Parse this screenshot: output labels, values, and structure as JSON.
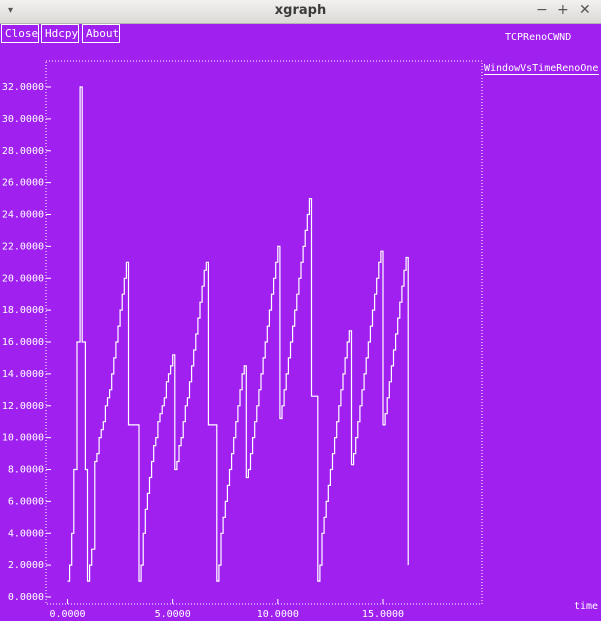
{
  "window": {
    "title": "xgraph",
    "menu_icon": "▾",
    "minimize_icon": "−",
    "maximize_icon": "+",
    "close_icon": "✕"
  },
  "toolbar": {
    "close_label": "Close",
    "hdcpy_label": "Hdcpy",
    "about_label": "About"
  },
  "graph": {
    "title": "TCPRenoCWND",
    "x_unit": "time",
    "legend": "WindowVsTimeRenoOne"
  },
  "chart_data": {
    "type": "line",
    "title": "TCPRenoCWND",
    "xlabel": "time",
    "ylabel": "",
    "xlim": [
      -1,
      20
    ],
    "ylim": [
      0,
      33
    ],
    "x_ticks": [
      0,
      5,
      10,
      15
    ],
    "x_tick_labels": [
      "0.0000",
      "5.0000",
      "10.0000",
      "15.0000"
    ],
    "y_ticks": [
      0,
      2,
      4,
      6,
      8,
      10,
      12,
      14,
      16,
      18,
      20,
      22,
      24,
      26,
      28,
      30,
      32
    ],
    "y_tick_labels": [
      "0.0000",
      "2.0000",
      "4.0000",
      "6.0000",
      "8.0000",
      "10.0000",
      "12.0000",
      "14.0000",
      "16.0000",
      "18.0000",
      "20.0000",
      "22.0000",
      "24.0000",
      "26.0000",
      "28.0000",
      "30.0000",
      "32.0000"
    ],
    "grid": false,
    "series": [
      {
        "name": "WindowVsTimeRenoOne",
        "color": "#ffffff",
        "points": [
          [
            0.0,
            1
          ],
          [
            0.1,
            1
          ],
          [
            0.1,
            2
          ],
          [
            0.2,
            2
          ],
          [
            0.2,
            4
          ],
          [
            0.3,
            4
          ],
          [
            0.3,
            8
          ],
          [
            0.45,
            8
          ],
          [
            0.45,
            16
          ],
          [
            0.6,
            16
          ],
          [
            0.6,
            32
          ],
          [
            0.7,
            32
          ],
          [
            0.7,
            16
          ],
          [
            0.85,
            16
          ],
          [
            0.85,
            8
          ],
          [
            0.95,
            8
          ],
          [
            0.95,
            1
          ],
          [
            1.05,
            1
          ],
          [
            1.05,
            2
          ],
          [
            1.15,
            2
          ],
          [
            1.15,
            3
          ],
          [
            1.3,
            3
          ],
          [
            1.3,
            8.5
          ],
          [
            1.4,
            8.5
          ],
          [
            1.4,
            9
          ],
          [
            1.5,
            9
          ],
          [
            1.5,
            10
          ],
          [
            1.6,
            10
          ],
          [
            1.6,
            10.5
          ],
          [
            1.7,
            10.5
          ],
          [
            1.7,
            11
          ],
          [
            1.8,
            11
          ],
          [
            1.8,
            12
          ],
          [
            1.9,
            12
          ],
          [
            1.9,
            12.5
          ],
          [
            2.0,
            12.5
          ],
          [
            2.0,
            13
          ],
          [
            2.1,
            13
          ],
          [
            2.1,
            14
          ],
          [
            2.2,
            14
          ],
          [
            2.2,
            15
          ],
          [
            2.3,
            15
          ],
          [
            2.3,
            16
          ],
          [
            2.4,
            16
          ],
          [
            2.4,
            17
          ],
          [
            2.5,
            17
          ],
          [
            2.5,
            18
          ],
          [
            2.6,
            18
          ],
          [
            2.6,
            19
          ],
          [
            2.7,
            19
          ],
          [
            2.7,
            20
          ],
          [
            2.8,
            20
          ],
          [
            2.8,
            21
          ],
          [
            2.9,
            21
          ],
          [
            2.9,
            10.8
          ],
          [
            3.4,
            10.8
          ],
          [
            3.4,
            1
          ],
          [
            3.5,
            1
          ],
          [
            3.5,
            2
          ],
          [
            3.6,
            2
          ],
          [
            3.6,
            4
          ],
          [
            3.7,
            4
          ],
          [
            3.7,
            5.5
          ],
          [
            3.8,
            5.5
          ],
          [
            3.8,
            6.5
          ],
          [
            3.9,
            6.5
          ],
          [
            3.9,
            7.5
          ],
          [
            4.0,
            7.5
          ],
          [
            4.0,
            8.5
          ],
          [
            4.1,
            8.5
          ],
          [
            4.1,
            9.5
          ],
          [
            4.2,
            9.5
          ],
          [
            4.2,
            10
          ],
          [
            4.3,
            10
          ],
          [
            4.3,
            11
          ],
          [
            4.4,
            11
          ],
          [
            4.4,
            11.5
          ],
          [
            4.5,
            11.5
          ],
          [
            4.5,
            12
          ],
          [
            4.6,
            12
          ],
          [
            4.6,
            12.5
          ],
          [
            4.7,
            12.5
          ],
          [
            4.7,
            13.5
          ],
          [
            4.8,
            13.5
          ],
          [
            4.8,
            14
          ],
          [
            4.9,
            14
          ],
          [
            4.9,
            14.5
          ],
          [
            5.0,
            14.5
          ],
          [
            5.0,
            15.2
          ],
          [
            5.1,
            15.2
          ],
          [
            5.1,
            8
          ],
          [
            5.2,
            8
          ],
          [
            5.2,
            8.5
          ],
          [
            5.3,
            8.5
          ],
          [
            5.3,
            9.5
          ],
          [
            5.4,
            9.5
          ],
          [
            5.4,
            10
          ],
          [
            5.5,
            10
          ],
          [
            5.5,
            11
          ],
          [
            5.6,
            11
          ],
          [
            5.6,
            12
          ],
          [
            5.7,
            12
          ],
          [
            5.7,
            12.5
          ],
          [
            5.8,
            12.5
          ],
          [
            5.8,
            13.5
          ],
          [
            5.9,
            13.5
          ],
          [
            5.9,
            14.5
          ],
          [
            6.0,
            14.5
          ],
          [
            6.0,
            15.5
          ],
          [
            6.1,
            15.5
          ],
          [
            6.1,
            16.5
          ],
          [
            6.2,
            16.5
          ],
          [
            6.2,
            17.5
          ],
          [
            6.3,
            17.5
          ],
          [
            6.3,
            18.5
          ],
          [
            6.4,
            18.5
          ],
          [
            6.4,
            19.5
          ],
          [
            6.5,
            19.5
          ],
          [
            6.5,
            20.5
          ],
          [
            6.6,
            20.5
          ],
          [
            6.6,
            21
          ],
          [
            6.7,
            21
          ],
          [
            6.7,
            10.8
          ],
          [
            7.1,
            10.8
          ],
          [
            7.1,
            1
          ],
          [
            7.2,
            1
          ],
          [
            7.2,
            2
          ],
          [
            7.3,
            2
          ],
          [
            7.3,
            4
          ],
          [
            7.4,
            4
          ],
          [
            7.4,
            5
          ],
          [
            7.5,
            5
          ],
          [
            7.5,
            6
          ],
          [
            7.6,
            6
          ],
          [
            7.6,
            7
          ],
          [
            7.7,
            7
          ],
          [
            7.7,
            8
          ],
          [
            7.8,
            8
          ],
          [
            7.8,
            9
          ],
          [
            7.9,
            9
          ],
          [
            7.9,
            10
          ],
          [
            8.0,
            10
          ],
          [
            8.0,
            11
          ],
          [
            8.1,
            11
          ],
          [
            8.1,
            12
          ],
          [
            8.2,
            12
          ],
          [
            8.2,
            13
          ],
          [
            8.3,
            13
          ],
          [
            8.3,
            14
          ],
          [
            8.4,
            14
          ],
          [
            8.4,
            14.5
          ],
          [
            8.5,
            14.5
          ],
          [
            8.5,
            7.5
          ],
          [
            8.6,
            7.5
          ],
          [
            8.6,
            8
          ],
          [
            8.7,
            8
          ],
          [
            8.7,
            9
          ],
          [
            8.8,
            9
          ],
          [
            8.8,
            10
          ],
          [
            8.9,
            10
          ],
          [
            8.9,
            11
          ],
          [
            9.0,
            11
          ],
          [
            9.0,
            12
          ],
          [
            9.1,
            12
          ],
          [
            9.1,
            13
          ],
          [
            9.2,
            13
          ],
          [
            9.2,
            14
          ],
          [
            9.3,
            14
          ],
          [
            9.3,
            15
          ],
          [
            9.4,
            15
          ],
          [
            9.4,
            16
          ],
          [
            9.5,
            16
          ],
          [
            9.5,
            17
          ],
          [
            9.6,
            17
          ],
          [
            9.6,
            18
          ],
          [
            9.7,
            18
          ],
          [
            9.7,
            19
          ],
          [
            9.8,
            19
          ],
          [
            9.8,
            20
          ],
          [
            9.9,
            20
          ],
          [
            9.9,
            21
          ],
          [
            10.0,
            21
          ],
          [
            10.0,
            22
          ],
          [
            10.1,
            22
          ],
          [
            10.1,
            11.2
          ],
          [
            10.2,
            11.2
          ],
          [
            10.2,
            12
          ],
          [
            10.3,
            12
          ],
          [
            10.3,
            13
          ],
          [
            10.4,
            13
          ],
          [
            10.4,
            14
          ],
          [
            10.5,
            14
          ],
          [
            10.5,
            15
          ],
          [
            10.6,
            15
          ],
          [
            10.6,
            16
          ],
          [
            10.7,
            16
          ],
          [
            10.7,
            17
          ],
          [
            10.8,
            17
          ],
          [
            10.8,
            18
          ],
          [
            10.9,
            18
          ],
          [
            10.9,
            19
          ],
          [
            11.0,
            19
          ],
          [
            11.0,
            20
          ],
          [
            11.1,
            20
          ],
          [
            11.1,
            21
          ],
          [
            11.2,
            21
          ],
          [
            11.2,
            22
          ],
          [
            11.3,
            22
          ],
          [
            11.3,
            23
          ],
          [
            11.4,
            23
          ],
          [
            11.4,
            24
          ],
          [
            11.5,
            24
          ],
          [
            11.5,
            25
          ],
          [
            11.6,
            25
          ],
          [
            11.6,
            12.6
          ],
          [
            11.9,
            12.6
          ],
          [
            11.9,
            1
          ],
          [
            12.0,
            1
          ],
          [
            12.0,
            2
          ],
          [
            12.1,
            2
          ],
          [
            12.1,
            4
          ],
          [
            12.2,
            4
          ],
          [
            12.2,
            5
          ],
          [
            12.3,
            5
          ],
          [
            12.3,
            6
          ],
          [
            12.4,
            6
          ],
          [
            12.4,
            7
          ],
          [
            12.5,
            7
          ],
          [
            12.5,
            8
          ],
          [
            12.6,
            8
          ],
          [
            12.6,
            9
          ],
          [
            12.7,
            9
          ],
          [
            12.7,
            10
          ],
          [
            12.8,
            10
          ],
          [
            12.8,
            11
          ],
          [
            12.9,
            11
          ],
          [
            12.9,
            12
          ],
          [
            13.0,
            12
          ],
          [
            13.0,
            13
          ],
          [
            13.1,
            13
          ],
          [
            13.1,
            14
          ],
          [
            13.2,
            14
          ],
          [
            13.2,
            15
          ],
          [
            13.3,
            15
          ],
          [
            13.3,
            16
          ],
          [
            13.4,
            16
          ],
          [
            13.4,
            16.7
          ],
          [
            13.5,
            16.7
          ],
          [
            13.5,
            8.3
          ],
          [
            13.6,
            8.3
          ],
          [
            13.6,
            9
          ],
          [
            13.7,
            9
          ],
          [
            13.7,
            10
          ],
          [
            13.8,
            10
          ],
          [
            13.8,
            11
          ],
          [
            13.9,
            11
          ],
          [
            13.9,
            12
          ],
          [
            14.0,
            12
          ],
          [
            14.0,
            13
          ],
          [
            14.1,
            13
          ],
          [
            14.1,
            14
          ],
          [
            14.2,
            14
          ],
          [
            14.2,
            15
          ],
          [
            14.3,
            15
          ],
          [
            14.3,
            16
          ],
          [
            14.4,
            16
          ],
          [
            14.4,
            17
          ],
          [
            14.5,
            17
          ],
          [
            14.5,
            18
          ],
          [
            14.6,
            18
          ],
          [
            14.6,
            19
          ],
          [
            14.7,
            19
          ],
          [
            14.7,
            20
          ],
          [
            14.8,
            20
          ],
          [
            14.8,
            21
          ],
          [
            14.9,
            21
          ],
          [
            14.9,
            21.7
          ],
          [
            15.0,
            21.7
          ],
          [
            15.0,
            10.8
          ],
          [
            15.1,
            10.8
          ],
          [
            15.1,
            11.5
          ],
          [
            15.2,
            11.5
          ],
          [
            15.2,
            12.5
          ],
          [
            15.3,
            12.5
          ],
          [
            15.3,
            13.5
          ],
          [
            15.4,
            13.5
          ],
          [
            15.4,
            14.5
          ],
          [
            15.5,
            14.5
          ],
          [
            15.5,
            15.5
          ],
          [
            15.6,
            15.5
          ],
          [
            15.6,
            16.5
          ],
          [
            15.7,
            16.5
          ],
          [
            15.7,
            17.5
          ],
          [
            15.8,
            17.5
          ],
          [
            15.8,
            18.5
          ],
          [
            15.9,
            18.5
          ],
          [
            15.9,
            19.5
          ],
          [
            16.0,
            19.5
          ],
          [
            16.0,
            20.5
          ],
          [
            16.1,
            20.5
          ],
          [
            16.1,
            21.3
          ],
          [
            16.2,
            21.3
          ],
          [
            16.2,
            2
          ]
        ]
      }
    ]
  }
}
